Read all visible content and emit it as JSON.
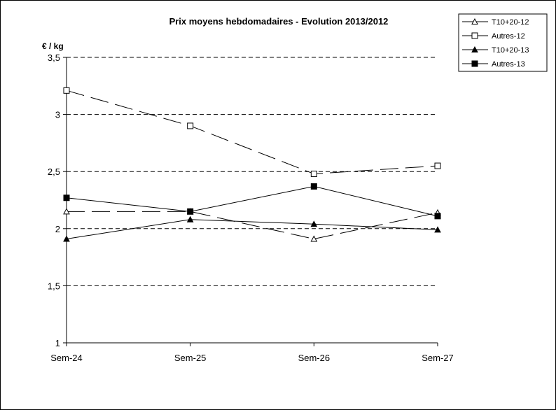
{
  "chart_data": {
    "type": "line",
    "title": "Prix moyens hebdomadaires - Evolution  2013/2012",
    "ylabel": "€ / kg",
    "xlabel": "",
    "categories": [
      "Sem-24",
      "Sem-25",
      "Sem-26",
      "Sem-27"
    ],
    "ylim": [
      1,
      3.5
    ],
    "yticks": [
      1,
      1.5,
      2,
      2.5,
      3,
      3.5
    ],
    "ytick_labels": [
      "1",
      "1,5",
      "2",
      "2,5",
      "3",
      "3,5"
    ],
    "grid": "horizontal dashed",
    "legend_position": "top-right",
    "series": [
      {
        "name": "T10+20-12",
        "values": [
          2.15,
          2.15,
          1.91,
          2.14
        ],
        "marker": "triangle-open",
        "dash": "long-dash"
      },
      {
        "name": "Autres-12",
        "values": [
          3.21,
          2.9,
          2.48,
          2.55
        ],
        "marker": "square-open",
        "dash": "long-dash"
      },
      {
        "name": "T10+20-13",
        "values": [
          1.91,
          2.08,
          2.04,
          1.99
        ],
        "marker": "triangle-filled",
        "dash": "solid"
      },
      {
        "name": "Autres-13",
        "values": [
          2.27,
          2.15,
          2.37,
          2.11
        ],
        "marker": "square-filled",
        "dash": "solid"
      }
    ]
  }
}
